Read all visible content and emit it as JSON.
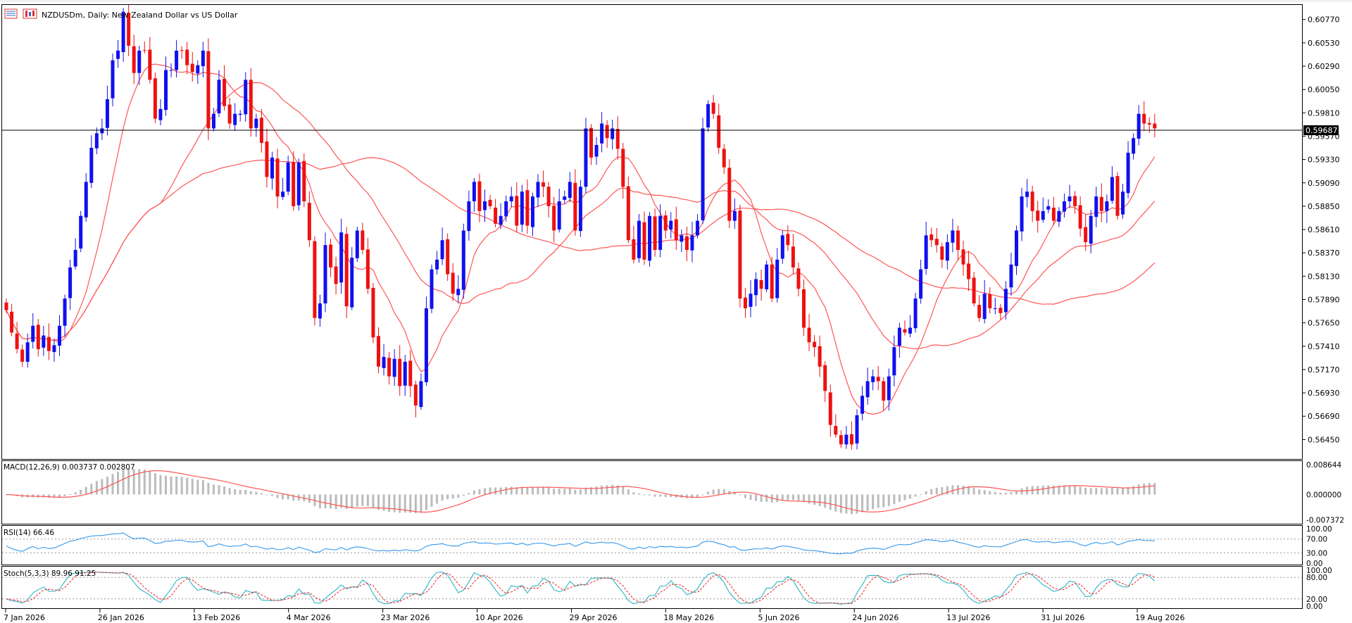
{
  "header": {
    "symbol_title": "NZDUSDm, Daily:  New Zealand Dollar vs US Dollar",
    "menu_icon": "list-icon",
    "chart_icon": "candle-chart-icon"
  },
  "colors": {
    "bull": "#1010ee",
    "bear": "#ee1111",
    "ma": "#ff5555",
    "rsi": "#3399ee",
    "stoch_main": "#2bb5c5",
    "stoch_signal": "#ee3333",
    "hist": "#bbbbbb"
  },
  "price_marker": "0.59687",
  "chart_data": {
    "type": "candlestick",
    "main": {
      "ylim": [
        0.5625,
        0.6092
      ],
      "y_ticks": [
        "0.60770",
        "0.60530",
        "0.60290",
        "0.60050",
        "0.59810",
        "0.59570",
        "0.59330",
        "0.59090",
        "0.58850",
        "0.58610",
        "0.58370",
        "0.58130",
        "0.57890",
        "0.57650",
        "0.57410",
        "0.57170",
        "0.56930",
        "0.56690",
        "0.56450"
      ],
      "x_ticks": [
        "7 Jan 2026",
        "26 Jan 2026",
        "13 Feb 2026",
        "4 Mar 2026",
        "23 Mar 2026",
        "10 Apr 2026",
        "29 Apr 2026",
        "18 May 2026",
        "5 Jun 2026",
        "24 Jun 2026",
        "13 Jul 2026",
        "31 Jul 2026",
        "19 Aug 2026"
      ],
      "closes": [
        0.5778,
        0.5755,
        0.5738,
        0.5725,
        0.5745,
        0.5762,
        0.5738,
        0.5752,
        0.5736,
        0.5742,
        0.5762,
        0.579,
        0.5822,
        0.584,
        0.5875,
        0.591,
        0.5945,
        0.596,
        0.5965,
        0.5995,
        0.6035,
        0.6045,
        0.6085,
        0.605,
        0.6022,
        0.6045,
        0.6045,
        0.6015,
        0.5975,
        0.5985,
        0.6025,
        0.6025,
        0.6045,
        0.6045,
        0.603,
        0.6023,
        0.603,
        0.6045,
        0.5965,
        0.598,
        0.6015,
        0.5988,
        0.597,
        0.598,
        0.598,
        0.6015,
        0.5965,
        0.5975,
        0.595,
        0.5915,
        0.5935,
        0.5895,
        0.59,
        0.593,
        0.5885,
        0.593,
        0.589,
        0.585,
        0.577,
        0.5785,
        0.5845,
        0.5822,
        0.5805,
        0.5858,
        0.5782,
        0.5832,
        0.586,
        0.584,
        0.58,
        0.575,
        0.572,
        0.573,
        0.571,
        0.5728,
        0.57,
        0.5725,
        0.57,
        0.568,
        0.5705,
        0.578,
        0.582,
        0.583,
        0.585,
        0.5815,
        0.5795,
        0.58,
        0.586,
        0.589,
        0.591,
        0.588,
        0.589,
        0.5885,
        0.5867,
        0.5875,
        0.589,
        0.5895,
        0.5865,
        0.59,
        0.5865,
        0.5895,
        0.591,
        0.5905,
        0.5885,
        0.586,
        0.589,
        0.5895,
        0.591,
        0.586,
        0.5905,
        0.5965,
        0.5935,
        0.5948,
        0.597,
        0.5955,
        0.5965,
        0.5944,
        0.5905,
        0.585,
        0.583,
        0.587,
        0.583,
        0.5875,
        0.584,
        0.5875,
        0.586,
        0.587,
        0.585,
        0.5855,
        0.584,
        0.5855,
        0.587,
        0.5965,
        0.599,
        0.598,
        0.5945,
        0.5925,
        0.587,
        0.588,
        0.579,
        0.578,
        0.5795,
        0.581,
        0.58,
        0.5825,
        0.579,
        0.583,
        0.5855,
        0.5845,
        0.5822,
        0.58,
        0.576,
        0.5745,
        0.574,
        0.572,
        0.5695,
        0.566,
        0.565,
        0.564,
        0.565,
        0.564,
        0.567,
        0.569,
        0.5705,
        0.571,
        0.5705,
        0.5685,
        0.571,
        0.574,
        0.576,
        0.5755,
        0.576,
        0.579,
        0.582,
        0.5855,
        0.585,
        0.5845,
        0.583,
        0.5848,
        0.586,
        0.584,
        0.5825,
        0.581,
        0.5785,
        0.577,
        0.5795,
        0.578,
        0.578,
        0.5775,
        0.58,
        0.5825,
        0.586,
        0.5895,
        0.59,
        0.588,
        0.587,
        0.588,
        0.5885,
        0.587,
        0.588,
        0.589,
        0.5895,
        0.5885,
        0.5862,
        0.5848,
        0.5875,
        0.5895,
        0.588,
        0.589,
        0.5915,
        0.5875,
        0.59,
        0.594,
        0.5955,
        0.598,
        0.597,
        0.5969,
        0.5965
      ]
    },
    "macd": {
      "label": "MACD(12,26,9) 0.003737 0.002807",
      "y_ticks": [
        "0.008644",
        "0.000000",
        "-0.007372"
      ],
      "ylim": [
        -0.0085,
        0.0097
      ]
    },
    "rsi": {
      "label": "RSI(14) 66.46",
      "y_ticks": [
        "100.00",
        "70.00",
        "30.00",
        "0.00"
      ],
      "levels": [
        70,
        30
      ]
    },
    "stoch": {
      "label": "Stoch(5,3,3) 89.96 91.25",
      "y_ticks": [
        "100.00",
        "80.00",
        "20.00",
        "0.00"
      ],
      "levels": [
        80,
        20
      ]
    }
  }
}
